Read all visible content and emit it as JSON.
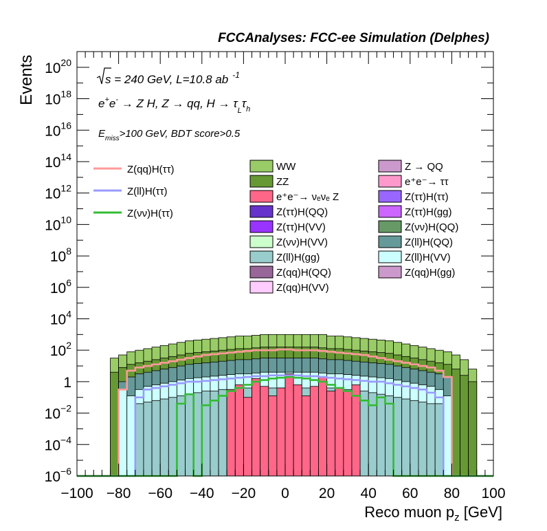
{
  "chart_data": {
    "type": "area",
    "title": "FCCAnalyses: FCC-ee Simulation (Delphes)",
    "xlabel_main": "Reco muon p",
    "xlabel_sub": "z",
    "xlabel_unit": " [GeV]",
    "ylabel": "Events",
    "xlim": [
      -100,
      100
    ],
    "ylim_log10": [
      -6,
      21
    ],
    "y_log_scale": true,
    "x_ticks": [
      -100,
      -80,
      -60,
      -40,
      -20,
      0,
      20,
      40,
      60,
      80,
      100
    ],
    "y_tick_exponents": [
      -6,
      -4,
      -2,
      0,
      2,
      4,
      6,
      8,
      10,
      12,
      14,
      16,
      18,
      20
    ],
    "annotations": {
      "energy_prefix": "s",
      "energy_text": " = 240 GeV, L=10.8 ab",
      "energy_exp": "-1",
      "process_a": "e",
      "process_b": "e",
      "process_c": " → Z H, Z  → qq, H  → τ",
      "process_d": "L",
      "process_e": "τ",
      "process_f": "h",
      "cut_prefix": "E",
      "cut_sub": "miss",
      "cut_text": ">100 GeV, BDT score>0.5"
    },
    "legend_signals": [
      {
        "label": "Z(qq)H(ττ)",
        "color": "#ff9999"
      },
      {
        "label": "Z(ll)H(ττ)",
        "color": "#9999ff"
      },
      {
        "label": "Z(νν)H(ττ)",
        "color": "#33bb33"
      }
    ],
    "legend_bkg_col1": [
      {
        "label": "WW",
        "color": "#99cc66"
      },
      {
        "label": "ZZ",
        "color": "#669933"
      },
      {
        "label": "e⁺e⁻→ νₑνₑ Z",
        "color": "#ff6688"
      },
      {
        "label": "Z(ττ)H(QQ)",
        "color": "#6633cc"
      },
      {
        "label": "Z(ττ)H(VV)",
        "color": "#9933ff"
      },
      {
        "label": "Z(νν)H(VV)",
        "color": "#ccffcc"
      },
      {
        "label": "Z(ll)H(gg)",
        "color": "#99cccc"
      },
      {
        "label": "Z(qq)H(QQ)",
        "color": "#996699"
      },
      {
        "label": "Z(qq)H(VV)",
        "color": "#ffccff"
      }
    ],
    "legend_bkg_col2": [
      {
        "label": "Z → QQ",
        "color": "#cc99cc"
      },
      {
        "label": "e⁺e⁻→ ττ",
        "color": "#ff99cc"
      },
      {
        "label": "Z(ττ)H(ττ)",
        "color": "#9966ff"
      },
      {
        "label": "Z(ττ)H(gg)",
        "color": "#cc66ff"
      },
      {
        "label": "Z(νν)H(QQ)",
        "color": "#669966"
      },
      {
        "label": "Z(ll)H(QQ)",
        "color": "#669999"
      },
      {
        "label": "Z(ll)H(VV)",
        "color": "#ccffff"
      },
      {
        "label": "Z(qq)H(gg)",
        "color": "#cc99cc"
      }
    ],
    "stack": {
      "edges": [
        -100,
        -96,
        -92,
        -88,
        -84,
        -80,
        -76,
        -72,
        -68,
        -64,
        -60,
        -56,
        -52,
        -48,
        -44,
        -40,
        -36,
        -32,
        -28,
        -24,
        -20,
        -16,
        -12,
        -8,
        -4,
        0,
        4,
        8,
        12,
        16,
        20,
        24,
        28,
        32,
        36,
        40,
        44,
        48,
        52,
        56,
        60,
        64,
        68,
        72,
        76,
        80,
        84,
        88,
        92,
        96,
        100
      ],
      "layers": [
        {
          "name": "WW",
          "color": "#99cc66",
          "log10": [
            -6,
            -6,
            -6,
            -6,
            1.5,
            1.7,
            1.9,
            2.0,
            2.1,
            2.2,
            2.3,
            2.4,
            2.5,
            2.6,
            2.65,
            2.7,
            2.75,
            2.8,
            2.85,
            2.9,
            2.9,
            2.95,
            3.0,
            3.0,
            3.0,
            3.0,
            3.0,
            3.0,
            3.0,
            3.0,
            2.9,
            2.9,
            2.85,
            2.8,
            2.75,
            2.7,
            2.65,
            2.6,
            2.5,
            2.4,
            2.3,
            2.2,
            2.1,
            2.0,
            1.9,
            1.7,
            1.4,
            0.8,
            -6,
            -6
          ]
        },
        {
          "name": "ZZ",
          "color": "#669933",
          "log10": [
            -6,
            -6,
            -6,
            -6,
            0.6,
            0.9,
            1.1,
            1.2,
            1.3,
            1.4,
            1.5,
            1.6,
            1.7,
            1.8,
            1.85,
            1.9,
            1.95,
            2.0,
            2.05,
            2.1,
            2.1,
            2.15,
            2.2,
            2.2,
            2.2,
            2.2,
            2.2,
            2.2,
            2.2,
            2.15,
            2.1,
            2.1,
            2.05,
            2.0,
            1.95,
            1.9,
            1.85,
            1.8,
            1.7,
            1.6,
            1.5,
            1.4,
            1.3,
            1.2,
            1.1,
            0.8,
            0.4,
            0.0,
            -6,
            -6
          ]
        },
        {
          "name": "Z(ll)H(QQ)",
          "color": "#669999",
          "log10": [
            -6,
            -6,
            -6,
            -6,
            -6,
            0.0,
            0.3,
            0.5,
            0.6,
            0.7,
            0.8,
            0.9,
            1.0,
            1.1,
            1.15,
            1.2,
            1.25,
            1.3,
            1.35,
            1.4,
            1.4,
            1.45,
            1.5,
            1.5,
            1.5,
            1.5,
            1.5,
            1.5,
            1.5,
            1.45,
            1.4,
            1.4,
            1.35,
            1.3,
            1.25,
            1.2,
            1.15,
            1.1,
            1.0,
            0.9,
            0.8,
            0.7,
            0.6,
            0.5,
            0.3,
            -6,
            -6,
            -6,
            -6,
            -6
          ]
        },
        {
          "name": "Z(ll)H(VV)",
          "color": "#ccffff",
          "log10": [
            -6,
            -6,
            -6,
            -6,
            -6,
            -0.5,
            -0.9,
            -0.5,
            -0.3,
            -0.2,
            -0.1,
            0.0,
            0.1,
            0.2,
            0.25,
            0.3,
            0.35,
            0.4,
            0.45,
            0.5,
            0.5,
            0.55,
            0.6,
            0.6,
            0.6,
            0.6,
            0.6,
            0.6,
            0.6,
            0.55,
            0.5,
            0.5,
            0.45,
            0.4,
            0.35,
            0.3,
            0.25,
            0.2,
            0.1,
            0.0,
            -0.1,
            -0.2,
            -0.3,
            -0.5,
            -0.9,
            -6,
            -6,
            -6,
            -6,
            -6
          ]
        },
        {
          "name": "Z(ll)H(gg)",
          "color": "#99cccc",
          "log10": [
            -6,
            -6,
            -6,
            -6,
            -6,
            -6,
            -6,
            -1.4,
            -1.3,
            -1.2,
            -1.1,
            -1.0,
            -0.9,
            -0.8,
            -0.7,
            -0.6,
            -0.6,
            -0.5,
            -0.5,
            -0.4,
            -0.4,
            -0.4,
            -0.4,
            -0.4,
            -0.4,
            -0.4,
            -0.4,
            -0.4,
            -0.4,
            -0.4,
            -0.4,
            -0.5,
            -0.5,
            -0.6,
            -0.6,
            -0.7,
            -0.8,
            -0.9,
            -1.0,
            -1.1,
            -1.2,
            -1.3,
            -1.4,
            -1.4,
            -6,
            -6,
            -6,
            -6,
            -6,
            -6
          ]
        },
        {
          "name": "e⁺e⁻→ νₑνₑ Z",
          "color": "#ff6688",
          "log10": [
            -6,
            -6,
            -6,
            -6,
            -6,
            -6,
            -6,
            -6,
            -6,
            -6,
            -6,
            -6,
            -6,
            -6,
            -6,
            -6,
            -6,
            -6,
            -0.5,
            -0.2,
            -1.0,
            0.2,
            -0.3,
            -0.9,
            -0.4,
            0.5,
            -0.2,
            -0.9,
            -0.3,
            0.3,
            -0.6,
            -0.4,
            -0.6,
            -0.2,
            -6,
            -6,
            -6,
            -6,
            -6,
            -6,
            -6,
            -6,
            -6,
            -6,
            -6,
            -6,
            -6,
            -6,
            -6,
            -6
          ]
        },
        {
          "name": "Z(qq)H(QQ)",
          "color": "#996699",
          "log10": [
            -6,
            -6,
            -6,
            -6,
            -6,
            -6,
            -6,
            -6,
            -6,
            -6,
            -6,
            -6,
            -6,
            -6,
            -6,
            -6,
            -6,
            -6,
            -6,
            -6,
            -6,
            -6,
            -6,
            -6,
            -6,
            -6,
            -6,
            -6,
            -6,
            -6,
            -6,
            -6,
            -6,
            -6,
            -6,
            -6,
            -6,
            -6,
            -6,
            -6,
            -6,
            -6,
            -6,
            -6,
            -6,
            -6,
            -6,
            -6,
            -6,
            -6
          ]
        }
      ]
    },
    "signal_lines": [
      {
        "name": "Z(qq)H(ττ)",
        "color": "#ff9999",
        "log10": [
          -6,
          -6,
          -6,
          -6,
          -6,
          -0.5,
          0.7,
          0.9,
          1.0,
          1.1,
          1.2,
          1.3,
          1.4,
          1.5,
          1.6,
          1.7,
          1.75,
          1.8,
          1.85,
          1.9,
          1.95,
          2.0,
          2.0,
          2.0,
          2.05,
          2.05,
          2.0,
          2.0,
          2.0,
          1.95,
          1.9,
          1.85,
          1.8,
          1.75,
          1.7,
          1.6,
          1.5,
          1.4,
          1.3,
          1.2,
          1.1,
          1.0,
          0.9,
          0.7,
          0.3,
          -6,
          -6,
          -6,
          -6,
          -6
        ]
      },
      {
        "name": "Z(ll)H(ττ)",
        "color": "#9999ff",
        "log10": [
          -6,
          -6,
          -6,
          -6,
          -6,
          -6,
          -6,
          -1.0,
          -0.5,
          -0.4,
          -0.3,
          -0.2,
          -0.1,
          0.0,
          0.0,
          0.05,
          0.1,
          0.15,
          0.2,
          0.25,
          0.3,
          0.35,
          0.35,
          0.4,
          0.4,
          0.4,
          0.4,
          0.35,
          0.35,
          0.3,
          0.25,
          0.2,
          0.15,
          0.1,
          0.05,
          0.0,
          0.0,
          -0.1,
          -0.2,
          -0.3,
          -0.4,
          -0.5,
          -0.7,
          -1.0,
          -6,
          -6,
          -6,
          -6,
          -6,
          -6
        ]
      },
      {
        "name": "Z(νν)H(ττ)",
        "color": "#33bb33",
        "log10": [
          -6,
          -6,
          -6,
          -6,
          -6,
          -6,
          -6,
          -6,
          -6,
          -6,
          -6,
          -6,
          -1.4,
          -0.8,
          -6,
          -1.5,
          -1.2,
          -0.9,
          -0.6,
          -0.4,
          -0.2,
          0.0,
          0.1,
          0.2,
          0.25,
          0.3,
          0.25,
          0.2,
          0.1,
          0.0,
          -0.2,
          -0.4,
          -0.6,
          -0.9,
          -1.2,
          -1.5,
          -1.0,
          -1.4,
          -6,
          -6,
          -6,
          -6,
          -6,
          -6,
          -6,
          -6,
          -6,
          -6,
          -6,
          -6
        ]
      }
    ]
  }
}
